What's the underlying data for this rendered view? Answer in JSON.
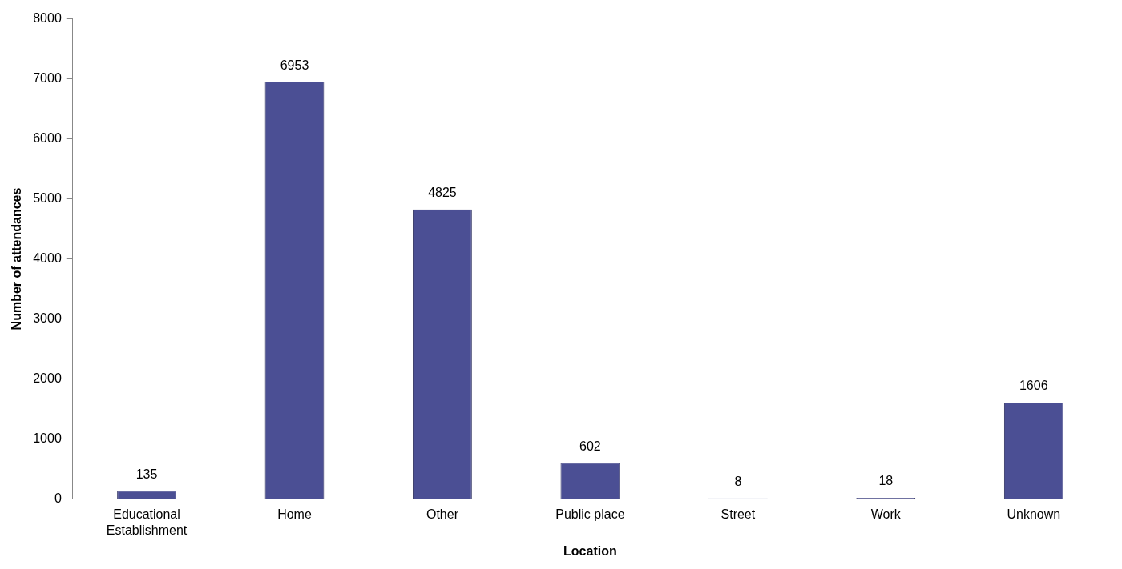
{
  "chart_data": {
    "type": "bar",
    "xlabel": "Location",
    "ylabel": "Number of attendances",
    "categories": [
      "Educational Establishment",
      "Home",
      "Other",
      "Public place",
      "Street",
      "Work",
      "Unknown"
    ],
    "values": [
      135,
      6953,
      4825,
      602,
      8,
      18,
      1606
    ],
    "color": "#4b4f94",
    "ylim": [
      0,
      8000
    ],
    "yticks": [
      0,
      1000,
      2000,
      3000,
      4000,
      5000,
      6000,
      7000,
      8000
    ],
    "grid": false,
    "legend": false,
    "data_labels": true
  }
}
